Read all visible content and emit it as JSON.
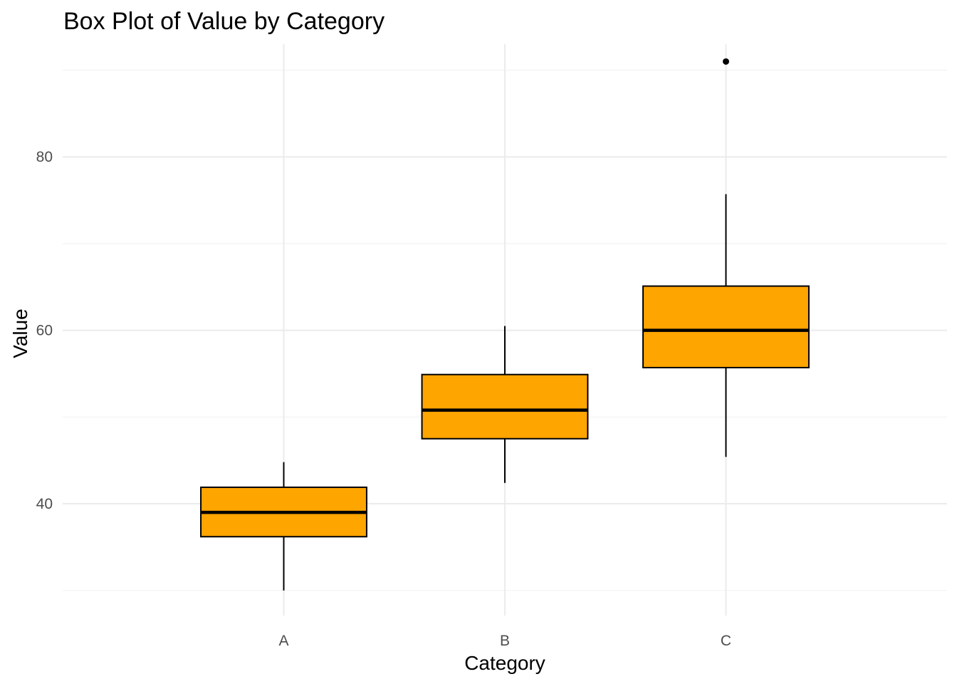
{
  "chart_data": {
    "type": "box",
    "title": "Box Plot of Value by Category",
    "xlabel": "Category",
    "ylabel": "Value",
    "categories": [
      "A",
      "B",
      "C"
    ],
    "ylim": [
      27.1,
      93.0
    ],
    "yticks": [
      40,
      60,
      80
    ],
    "yticks_minor": [
      30,
      50,
      70,
      90
    ],
    "grid": true,
    "fill_color": "#FFA500",
    "line_color": "#000000",
    "boxes": [
      {
        "category": "A",
        "whisker_low": 30.0,
        "q1": 36.2,
        "median": 39.0,
        "q3": 41.9,
        "whisker_high": 44.8,
        "outliers": []
      },
      {
        "category": "B",
        "whisker_low": 42.4,
        "q1": 47.5,
        "median": 50.8,
        "q3": 54.9,
        "whisker_high": 60.5,
        "outliers": []
      },
      {
        "category": "C",
        "whisker_low": 45.4,
        "q1": 55.7,
        "median": 60.0,
        "q3": 65.1,
        "whisker_high": 75.7,
        "outliers": [
          91.0
        ]
      }
    ]
  }
}
